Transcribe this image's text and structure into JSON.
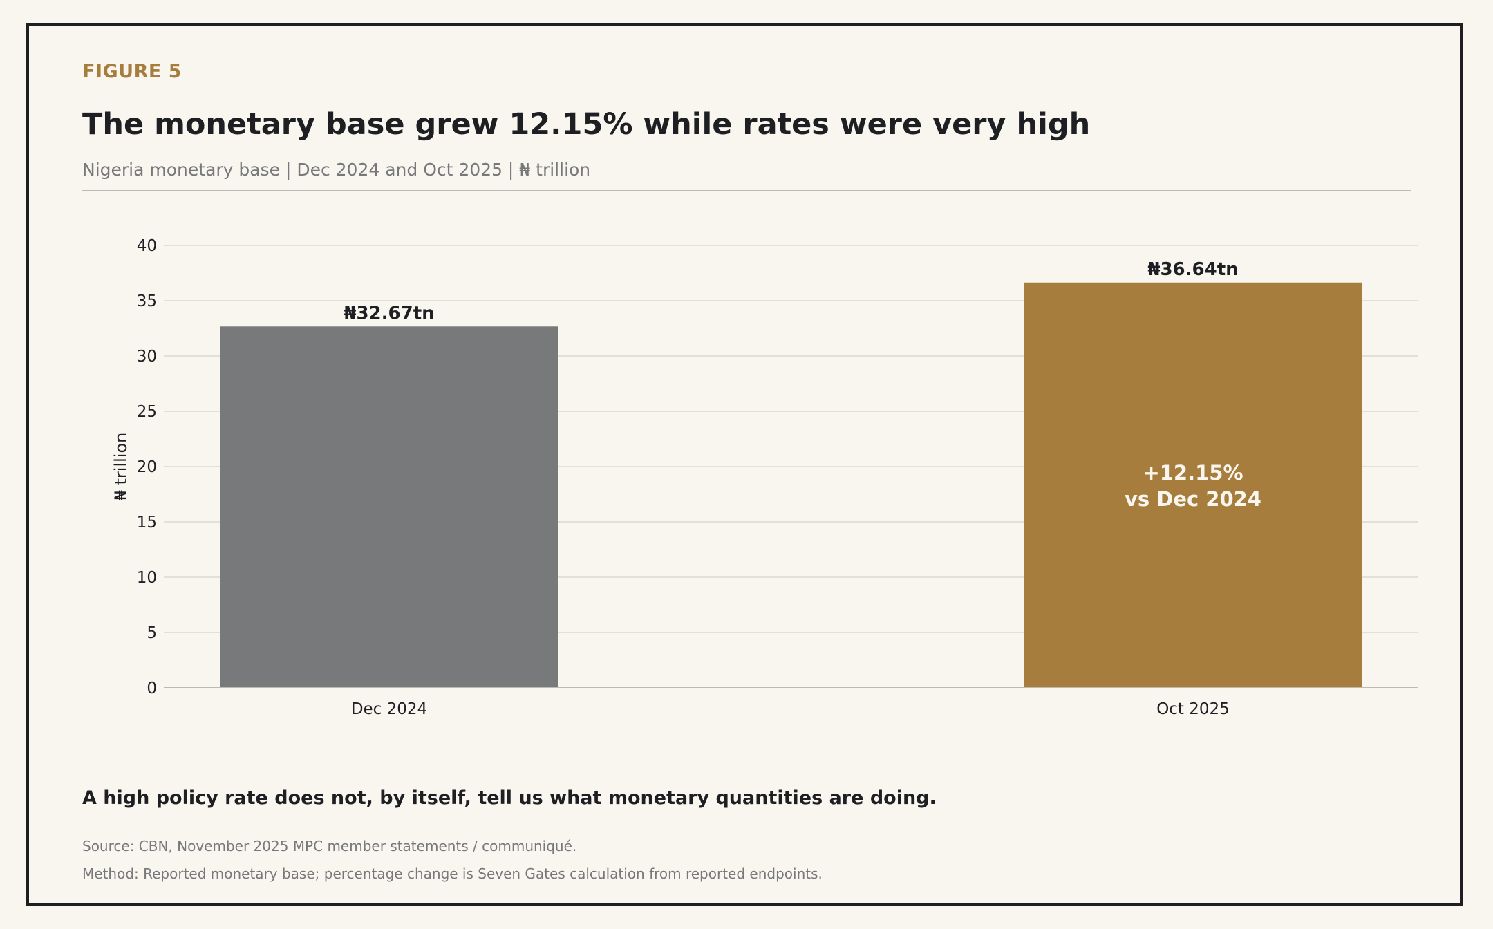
{
  "figure_label": "FIGURE 5",
  "title": "The monetary base grew 12.15% while rates were very high",
  "subtitle": "Nigeria monetary base | Dec 2024 and Oct 2025 | ₦ trillion",
  "takeaway": "A high policy rate does not, by itself, tell us what monetary quantities are doing.",
  "source": "Source: CBN, November 2025 MPC member statements / communiqué.",
  "method": "Method: Reported monetary base; percentage change is Seven Gates calculation from reported endpoints.",
  "colors": {
    "accent": "#a67d3d",
    "bar_dec_2024": "#78797a",
    "bar_oct_2025": "#a67d3d",
    "background": "#f9f6f0",
    "text": "#1d1f22",
    "muted": "#77787a"
  },
  "chart_data": {
    "type": "bar",
    "categories": [
      "Dec 2024",
      "Oct 2025"
    ],
    "values": [
      32.67,
      36.64
    ],
    "value_labels": [
      "₦32.67tn",
      "₦36.64tn"
    ],
    "title": "The monetary base grew 12.15% while rates were very high",
    "xlabel": "",
    "ylabel": "₦ trillion",
    "ylim": [
      0,
      40
    ],
    "yticks": [
      0,
      5,
      10,
      15,
      20,
      25,
      30,
      35,
      40
    ],
    "grid": true,
    "annotation": {
      "category": "Oct 2025",
      "lines": [
        "+12.15%",
        "vs Dec 2024"
      ]
    }
  }
}
